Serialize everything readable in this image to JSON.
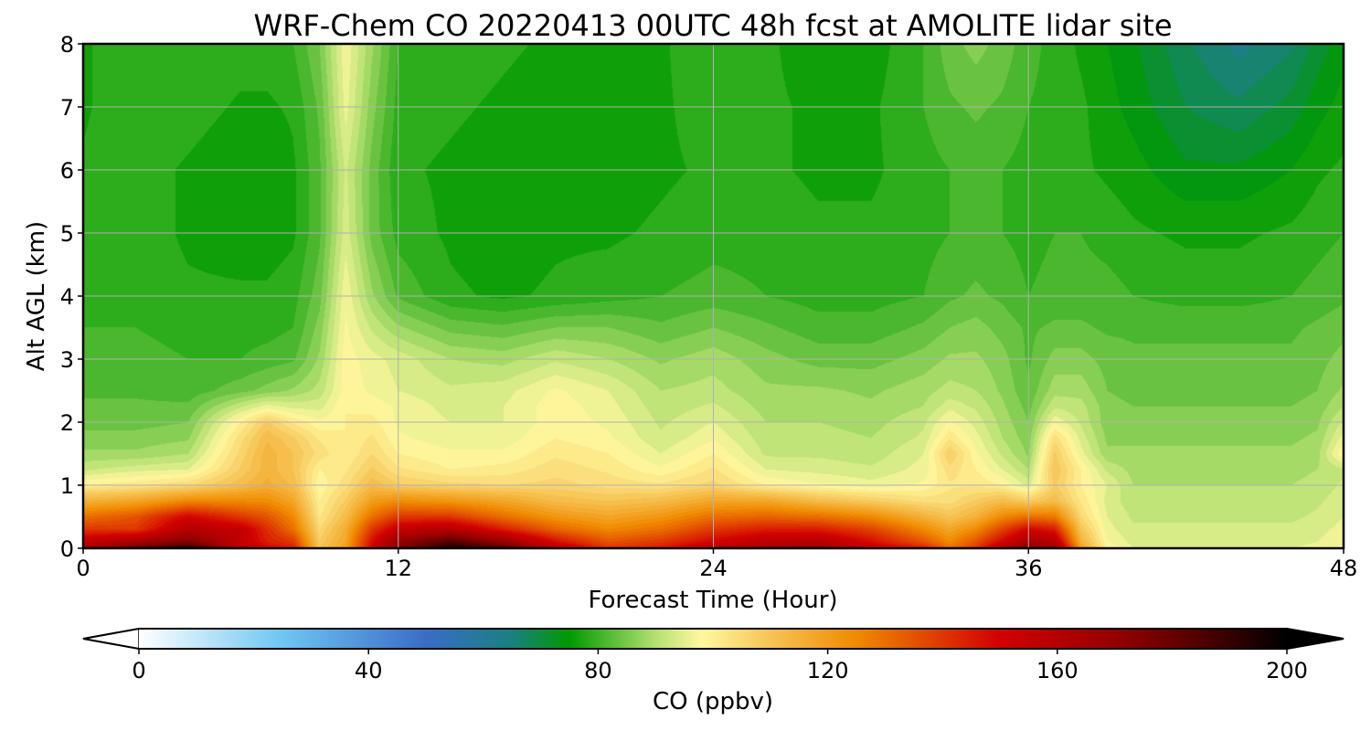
{
  "chart_data": {
    "type": "heatmap",
    "title": "WRF-Chem CO  20220413 00UTC 48h fcst at AMOLITE lidar site",
    "xlabel": "Forecast Time (Hour)",
    "ylabel": "Alt AGL (km)",
    "xlim": [
      0,
      48
    ],
    "ylim": [
      0,
      8
    ],
    "x_ticks": [
      "0",
      "12",
      "24",
      "36",
      "48"
    ],
    "y_ticks": [
      "0",
      "1",
      "2",
      "3",
      "4",
      "5",
      "6",
      "7",
      "8"
    ],
    "grid": true,
    "colorbar": {
      "label": "CO  (ppbv)",
      "range": [
        0,
        200
      ],
      "ticks": [
        "0",
        "40",
        "80",
        "120",
        "160",
        "200"
      ],
      "extend": "both",
      "orientation": "horizontal",
      "placement": "bottom",
      "stops": [
        {
          "value": 0,
          "color": "#ffffff"
        },
        {
          "value": 25,
          "color": "#6ec6f2"
        },
        {
          "value": 50,
          "color": "#3a6cc8"
        },
        {
          "value": 65,
          "color": "#1a8080"
        },
        {
          "value": 75,
          "color": "#009a00"
        },
        {
          "value": 90,
          "color": "#b4e070"
        },
        {
          "value": 98,
          "color": "#fff8a0"
        },
        {
          "value": 110,
          "color": "#f6c454"
        },
        {
          "value": 125,
          "color": "#f08a00"
        },
        {
          "value": 150,
          "color": "#d20000"
        },
        {
          "value": 170,
          "color": "#960000"
        },
        {
          "value": 185,
          "color": "#500000"
        },
        {
          "value": 200,
          "color": "#000000"
        }
      ]
    },
    "x_values": [
      0,
      2,
      4,
      6,
      7,
      8,
      9,
      10,
      11,
      12,
      14,
      16,
      18,
      20,
      22,
      24,
      26,
      28,
      30,
      32,
      33,
      34,
      35,
      36,
      37,
      38,
      39,
      40,
      42,
      44,
      46,
      47,
      48
    ],
    "y_values": [
      0,
      0.1,
      0.3,
      0.5,
      0.75,
      1,
      1.25,
      1.5,
      1.75,
      2,
      2.25,
      2.5,
      3,
      3.5,
      4,
      5,
      6,
      7,
      8
    ],
    "z_values": [
      [
        165,
        180,
        195,
        160,
        150,
        145,
        110,
        120,
        150,
        175,
        195,
        185,
        160,
        140,
        145,
        160,
        168,
        170,
        155,
        145,
        130,
        140,
        160,
        175,
        170,
        120,
        100,
        95,
        95,
        95,
        95,
        96,
        98
      ],
      [
        155,
        165,
        175,
        155,
        145,
        140,
        108,
        118,
        148,
        170,
        185,
        170,
        148,
        135,
        140,
        150,
        158,
        160,
        148,
        135,
        125,
        135,
        150,
        165,
        160,
        115,
        98,
        94,
        94,
        94,
        94,
        95,
        97
      ],
      [
        140,
        140,
        160,
        155,
        142,
        130,
        105,
        116,
        140,
        155,
        160,
        145,
        132,
        125,
        130,
        140,
        145,
        145,
        138,
        125,
        118,
        125,
        138,
        150,
        145,
        110,
        96,
        93,
        93,
        93,
        93,
        94,
        96
      ],
      [
        130,
        135,
        150,
        140,
        135,
        125,
        102,
        112,
        130,
        140,
        140,
        130,
        122,
        118,
        122,
        130,
        132,
        130,
        125,
        115,
        110,
        115,
        125,
        130,
        128,
        105,
        95,
        92,
        92,
        92,
        92,
        93,
        95
      ],
      [
        115,
        118,
        125,
        125,
        124,
        118,
        100,
        108,
        120,
        124,
        122,
        118,
        112,
        110,
        112,
        118,
        118,
        112,
        108,
        104,
        104,
        108,
        112,
        108,
        112,
        102,
        94,
        91,
        91,
        91,
        91,
        92,
        94
      ],
      [
        100,
        102,
        105,
        112,
        116,
        112,
        98,
        104,
        112,
        108,
        106,
        105,
        106,
        104,
        103,
        106,
        100,
        98,
        96,
        98,
        102,
        102,
        100,
        94,
        108,
        100,
        95,
        90,
        90,
        90,
        90,
        91,
        93
      ],
      [
        92,
        94,
        95,
        108,
        114,
        110,
        100,
        102,
        108,
        103,
        100,
        101,
        104,
        102,
        98,
        103,
        95,
        94,
        93,
        96,
        104,
        100,
        95,
        90,
        110,
        100,
        92,
        89,
        89,
        89,
        89,
        90,
        92
      ],
      [
        88,
        88,
        90,
        106,
        114,
        110,
        104,
        100,
        105,
        100,
        98,
        98,
        102,
        100,
        95,
        100,
        92,
        92,
        91,
        95,
        108,
        98,
        92,
        87,
        108,
        96,
        88,
        88,
        88,
        88,
        88,
        89,
        100
      ],
      [
        86,
        86,
        87,
        104,
        112,
        108,
        102,
        100,
        103,
        98,
        96,
        96,
        100,
        98,
        93,
        97,
        91,
        91,
        90,
        93,
        102,
        96,
        90,
        86,
        104,
        94,
        87,
        87,
        87,
        87,
        87,
        88,
        96
      ],
      [
        84,
        84,
        85,
        100,
        108,
        102,
        98,
        100,
        101,
        97,
        95,
        95,
        99,
        97,
        92,
        95,
        90,
        90,
        89,
        92,
        98,
        94,
        89,
        85,
        97,
        92,
        86,
        86,
        86,
        86,
        86,
        87,
        93
      ],
      [
        83,
        83,
        83,
        92,
        96,
        94,
        94,
        100,
        99,
        97,
        94,
        95,
        99,
        96,
        91,
        93,
        89,
        89,
        88,
        90,
        94,
        92,
        88,
        84,
        92,
        91,
        86,
        85,
        85,
        85,
        85,
        86,
        90
      ],
      [
        82,
        82,
        81,
        84,
        86,
        88,
        91,
        99,
        97,
        95,
        93,
        94,
        98,
        95,
        90,
        91,
        88,
        88,
        87,
        89,
        91,
        90,
        87,
        83,
        89,
        89,
        85,
        84,
        84,
        84,
        84,
        85,
        88
      ],
      [
        81,
        81,
        80,
        80,
        81,
        82,
        88,
        99,
        96,
        94,
        90,
        89,
        92,
        90,
        87,
        89,
        86,
        84,
        84,
        86,
        88,
        88,
        86,
        82,
        86,
        86,
        84,
        83,
        83,
        83,
        83,
        84,
        86
      ],
      [
        80,
        80,
        79,
        79,
        79,
        80,
        86,
        98,
        92,
        88,
        84,
        83,
        85,
        85,
        83,
        85,
        83,
        81,
        81,
        83,
        85,
        86,
        84,
        82,
        83,
        83,
        82,
        82,
        82,
        82,
        82,
        83,
        84
      ],
      [
        79,
        79,
        78,
        78,
        78,
        79,
        84,
        97,
        88,
        82,
        78,
        77,
        78,
        79,
        80,
        81,
        80,
        79,
        79,
        80,
        82,
        83,
        82,
        80,
        81,
        81,
        81,
        80,
        79,
        79,
        80,
        81,
        82
      ],
      [
        78,
        79,
        77,
        76,
        76,
        77,
        82,
        94,
        84,
        79,
        77,
        76,
        77,
        77,
        78,
        79,
        79,
        78,
        78,
        79,
        80,
        81,
        80,
        79,
        80,
        80,
        79,
        78,
        77,
        77,
        78,
        79,
        80
      ],
      [
        78,
        79,
        77,
        75,
        75,
        77,
        82,
        93,
        84,
        78,
        77,
        76,
        76,
        76,
        77,
        78,
        78,
        77,
        77,
        79,
        80,
        81,
        80,
        79,
        79,
        78,
        77,
        76,
        73,
        73,
        75,
        77,
        78
      ],
      [
        77,
        80,
        79,
        77,
        77,
        78,
        83,
        96,
        86,
        79,
        78,
        77,
        76,
        76,
        77,
        79,
        78,
        77,
        77,
        80,
        82,
        83,
        82,
        80,
        79,
        78,
        76,
        74,
        70,
        68,
        71,
        74,
        76
      ],
      [
        77,
        80,
        80,
        79,
        79,
        80,
        85,
        97,
        88,
        80,
        79,
        78,
        77,
        77,
        77,
        80,
        78,
        76,
        76,
        80,
        84,
        86,
        84,
        81,
        79,
        77,
        75,
        73,
        68,
        64,
        67,
        71,
        74
      ]
    ]
  }
}
